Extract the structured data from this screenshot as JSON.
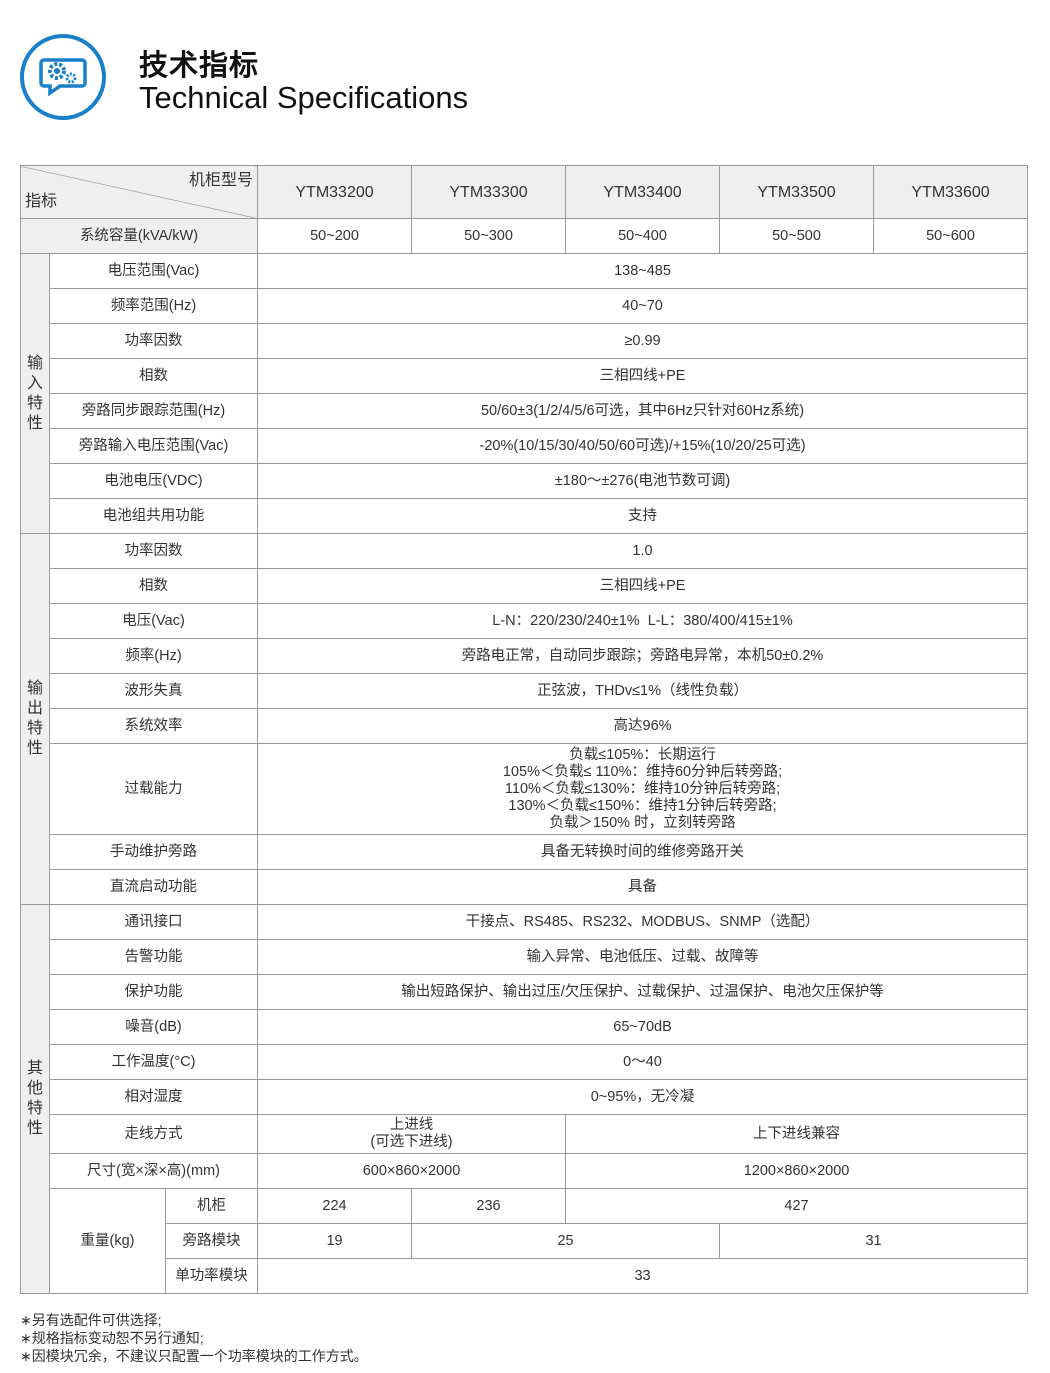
{
  "header": {
    "title_cn": "技术指标",
    "title_en": "Technical Specifications",
    "logo_icon": "gears-chat-icon",
    "accent_color": "#1b7fc9"
  },
  "table": {
    "corner_top": "机柜型号",
    "corner_bottom": "指标",
    "models": [
      "YTM33200",
      "YTM33300",
      "YTM33400",
      "YTM33500",
      "YTM33600"
    ],
    "capacity": {
      "label": "系统容量(kVA/kW)",
      "values": [
        "50~200",
        "50~300",
        "50~400",
        "50~500",
        "50~600"
      ]
    },
    "input": {
      "group": "输入特性",
      "rows": [
        {
          "label": "电压范围(Vac)",
          "value": "138~485"
        },
        {
          "label": "频率范围(Hz)",
          "value": "40~70"
        },
        {
          "label": "功率因数",
          "value": "≥0.99"
        },
        {
          "label": "相数",
          "value": "三相四线+PE"
        },
        {
          "label": "旁路同步跟踪范围(Hz)",
          "value": "50/60±3(1/2/4/5/6可选，其中6Hz只针对60Hz系统)"
        },
        {
          "label": "旁路输入电压范围(Vac)",
          "value": "-20%(10/15/30/40/50/60可选)/+15%(10/20/25可选)"
        },
        {
          "label": "电池电压(VDC)",
          "value": "±180～±276(电池节数可调)"
        },
        {
          "label": "电池组共用功能",
          "value": "支持"
        }
      ]
    },
    "output": {
      "group": "输出特性",
      "rows": [
        {
          "label": "功率因数",
          "value": "1.0"
        },
        {
          "label": "相数",
          "value": "三相四线+PE"
        },
        {
          "label": "电压(Vac)",
          "value": "L-N：220/230/240±1%  L-L：380/400/415±1%"
        },
        {
          "label": "频率(Hz)",
          "value": "旁路电正常，自动同步跟踪；旁路电异常，本机50±0.2%"
        },
        {
          "label": "波形失真",
          "value": "正弦波，THDv≤1%（线性负载）"
        },
        {
          "label": "系统效率",
          "value": "高达96%"
        },
        {
          "label": "过载能力",
          "lines": [
            "负载≤105%：长期运行",
            "105%＜负载≤ 110%：维持60分钟后转旁路;",
            "110%＜负载≤130%：维持10分钟后转旁路;",
            "130%＜负载≤150%：维持1分钟后转旁路;",
            "负载＞150% 时，立刻转旁路"
          ]
        },
        {
          "label": "手动维护旁路",
          "value": "具备无转换时间的维修旁路开关"
        },
        {
          "label": "直流启动功能",
          "value": "具备"
        }
      ]
    },
    "other": {
      "group": "其他特性",
      "rows": [
        {
          "label": "通讯接口",
          "value": "干接点、RS485、RS232、MODBUS、SNMP（选配）"
        },
        {
          "label": "告警功能",
          "value": "输入异常、电池低压、过载、故障等"
        },
        {
          "label": "保护功能",
          "value": "输出短路保护、输出过压/欠压保护、过载保护、过温保护、电池欠压保护等"
        },
        {
          "label": "噪音(dB)",
          "value": "65~70dB"
        },
        {
          "label": "工作温度(°C)",
          "value": "0～40"
        },
        {
          "label": "相对湿度",
          "value": "0~95%，无冷凝"
        }
      ],
      "wiring": {
        "label": "走线方式",
        "small_line1": "上进线",
        "small_line2": "(可选下进线)",
        "large": "上下进线兼容"
      },
      "dimensions": {
        "label": "尺寸(宽×深×高)(mm)",
        "small": "600×860×2000",
        "large": "1200×860×2000"
      },
      "weight": {
        "label": "重量(kg)",
        "cabinet": {
          "label": "机柜",
          "values": [
            "224",
            "236",
            "427"
          ]
        },
        "bypass": {
          "label": "旁路模块",
          "values": [
            "19",
            "25",
            "31"
          ]
        },
        "power_module": {
          "label": "单功率模块",
          "value": "33"
        }
      }
    }
  },
  "notes": [
    "∗另有选配件可供选择;",
    "∗规格指标变动恕不另行通知;",
    "∗因模块冗余，不建议只配置一个功率模块的工作方式。"
  ]
}
